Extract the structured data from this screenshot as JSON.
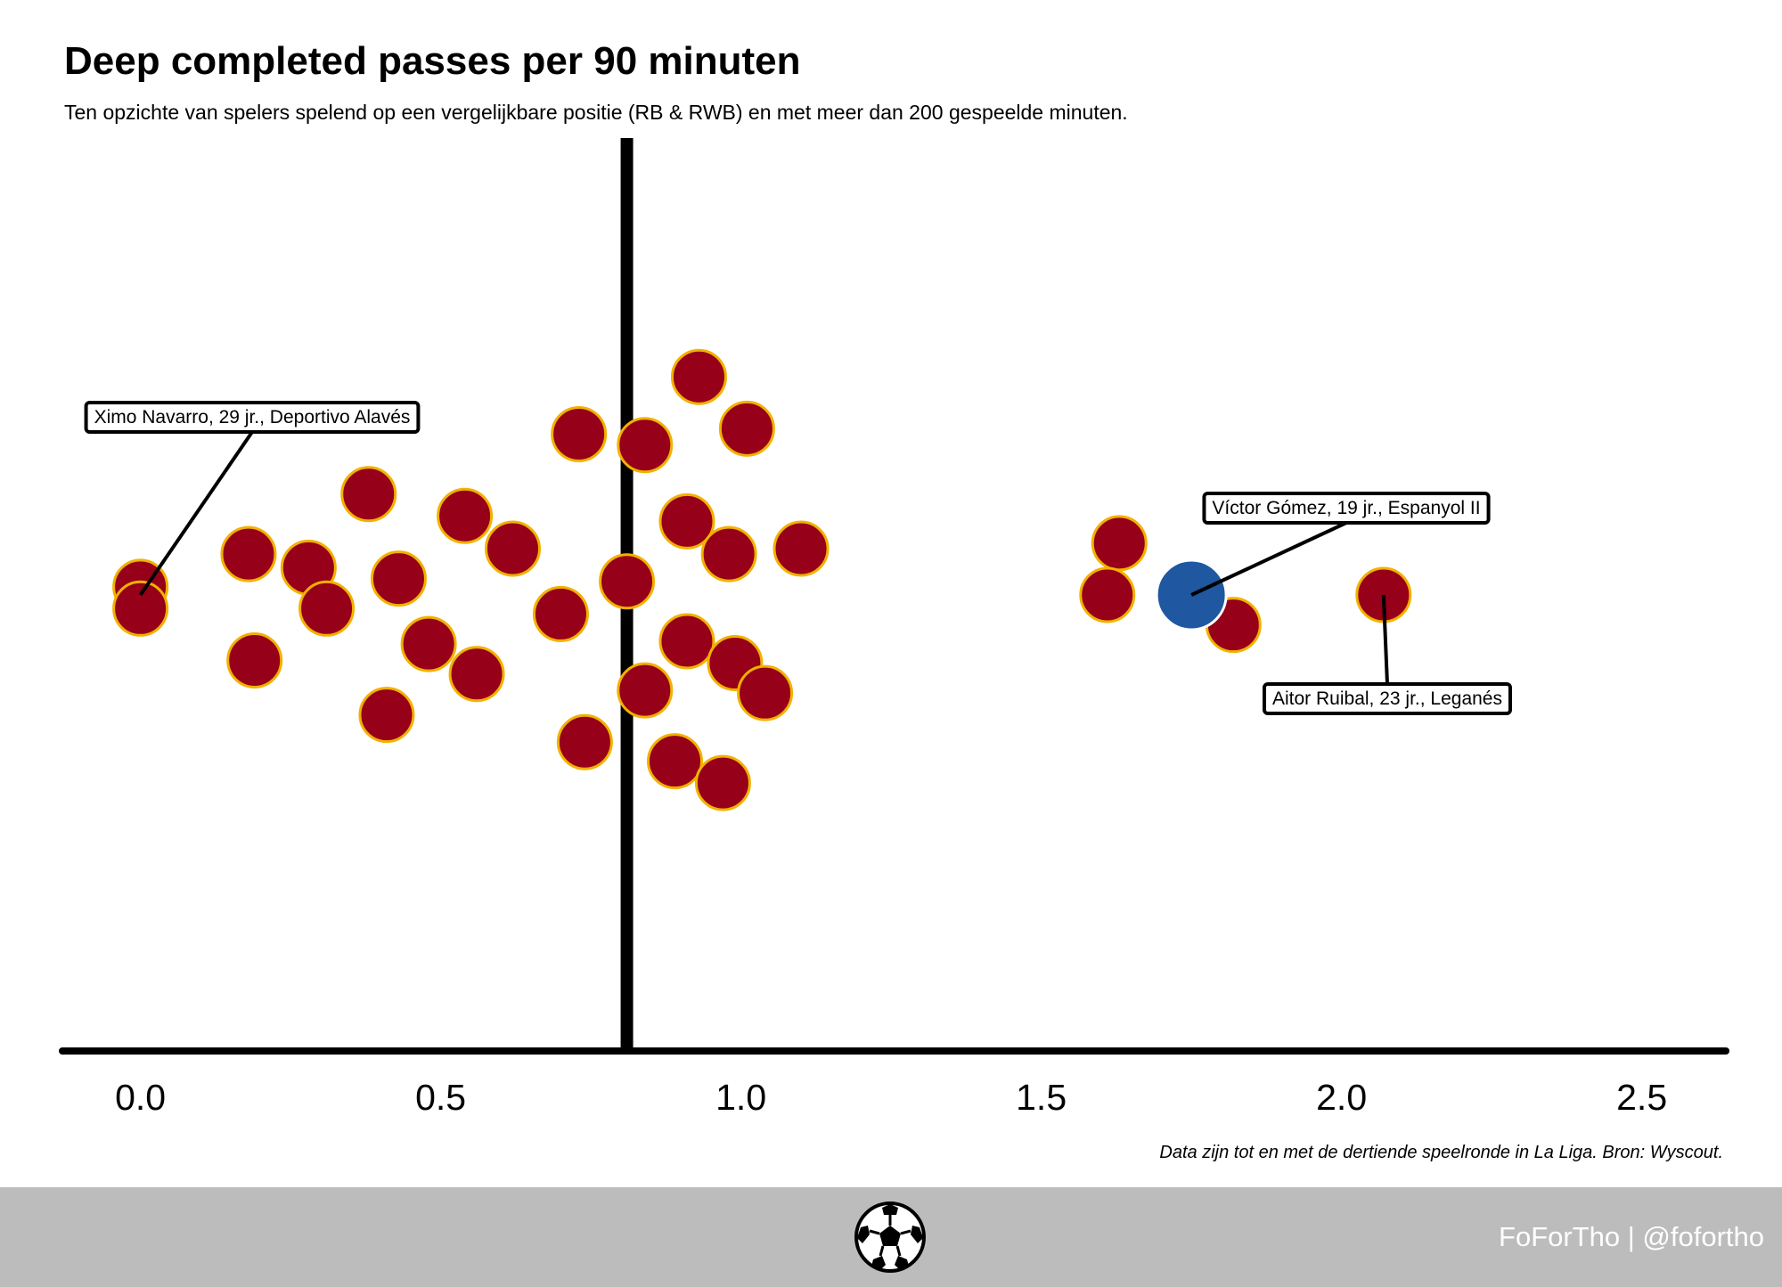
{
  "header": {
    "title": "Deep completed passes per 90 minuten",
    "subtitle": "Ten opzichte van spelers spelend op een vergelijkbare positie (RB & RWB) en met meer dan 200 gespeelde minuten."
  },
  "source_note": "Data zijn tot en met de dertiende speelronde in La Liga. Bron: Wyscout.",
  "footer": {
    "credit": "FoForTho | @fofortho",
    "icon": "soccer-ball-icon",
    "background": "#bcbcbc"
  },
  "chart_data": {
    "type": "scatter",
    "title": "Deep completed passes per 90 minuten",
    "xlabel": "",
    "ylabel": "",
    "xlim": [
      -0.13,
      2.64
    ],
    "x_ticks": [
      "0.0",
      "0.5",
      "1.0",
      "1.5",
      "2.0",
      "2.5"
    ],
    "x_tick_values": [
      0.0,
      0.5,
      1.0,
      1.5,
      2.0,
      2.5
    ],
    "grid": false,
    "reference_line": {
      "x": 0.81,
      "color": "#000000"
    },
    "colors": {
      "player": "#960018",
      "player_edge": "#f2b100",
      "highlight": "#1f57a0",
      "highlight_edge": "#ffffff"
    },
    "series": [
      {
        "values": [
          {
            "x": 0.0,
            "jitter": 0.03
          },
          {
            "x": 0.0,
            "jitter": -0.05
          },
          {
            "x": 0.18,
            "jitter": 0.15
          },
          {
            "x": 0.19,
            "jitter": -0.24
          },
          {
            "x": 0.28,
            "jitter": 0.1
          },
          {
            "x": 0.31,
            "jitter": -0.05
          },
          {
            "x": 0.38,
            "jitter": 0.37
          },
          {
            "x": 0.41,
            "jitter": -0.44
          },
          {
            "x": 0.43,
            "jitter": 0.06
          },
          {
            "x": 0.48,
            "jitter": -0.18
          },
          {
            "x": 0.54,
            "jitter": 0.29
          },
          {
            "x": 0.56,
            "jitter": -0.29
          },
          {
            "x": 0.62,
            "jitter": 0.17
          },
          {
            "x": 0.7,
            "jitter": -0.07
          },
          {
            "x": 0.73,
            "jitter": 0.59
          },
          {
            "x": 0.74,
            "jitter": -0.54
          },
          {
            "x": 0.81,
            "jitter": 0.05
          },
          {
            "x": 0.84,
            "jitter": 0.55
          },
          {
            "x": 0.84,
            "jitter": -0.35
          },
          {
            "x": 0.89,
            "jitter": -0.61
          },
          {
            "x": 0.91,
            "jitter": 0.27
          },
          {
            "x": 0.91,
            "jitter": -0.17
          },
          {
            "x": 0.93,
            "jitter": 0.8
          },
          {
            "x": 0.97,
            "jitter": -0.69
          },
          {
            "x": 0.98,
            "jitter": 0.15
          },
          {
            "x": 0.99,
            "jitter": -0.25
          },
          {
            "x": 1.01,
            "jitter": 0.61
          },
          {
            "x": 1.04,
            "jitter": -0.36
          },
          {
            "x": 1.1,
            "jitter": 0.17
          },
          {
            "x": 1.63,
            "jitter": 0.19
          },
          {
            "x": 1.61,
            "jitter": 0.0
          },
          {
            "x": 1.82,
            "jitter": -0.11
          },
          {
            "x": 2.07,
            "jitter": 0.0
          }
        ]
      },
      {
        "values": [
          {
            "x": 1.75,
            "jitter": 0.0
          }
        ]
      }
    ],
    "annotations": [
      {
        "text": "Ximo Navarro, 29 jr., Deportivo Alavés",
        "x": 0.0
      },
      {
        "text": "Víctor Gómez, 19 jr., Espanyol II",
        "x": 1.75
      },
      {
        "text": "Aitor Ruibal, 23 jr., Leganés",
        "x": 2.07
      }
    ]
  }
}
